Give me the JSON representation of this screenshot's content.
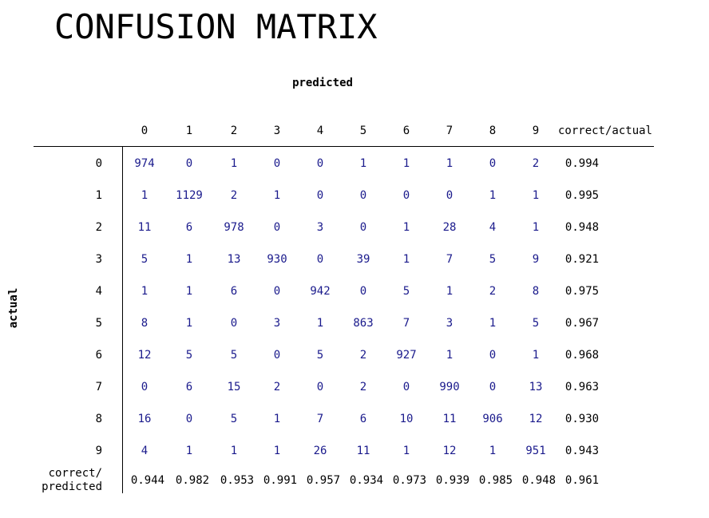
{
  "chart_data": {
    "type": "table",
    "title": "CONFUSION MATRIX",
    "xlabel": "predicted",
    "ylabel": "actual",
    "columns": [
      "0",
      "1",
      "2",
      "3",
      "4",
      "5",
      "6",
      "7",
      "8",
      "9"
    ],
    "rows": [
      "0",
      "1",
      "2",
      "3",
      "4",
      "5",
      "6",
      "7",
      "8",
      "9"
    ],
    "summary_column_label": "correct/actual",
    "summary_row_label": [
      "correct/",
      "predicted"
    ],
    "values": [
      [
        974,
        0,
        1,
        0,
        0,
        1,
        1,
        1,
        0,
        2
      ],
      [
        1,
        1129,
        2,
        1,
        0,
        0,
        0,
        0,
        1,
        1
      ],
      [
        11,
        6,
        978,
        0,
        3,
        0,
        1,
        28,
        4,
        1
      ],
      [
        5,
        1,
        13,
        930,
        0,
        39,
        1,
        7,
        5,
        9
      ],
      [
        1,
        1,
        6,
        0,
        942,
        0,
        5,
        1,
        2,
        8
      ],
      [
        8,
        1,
        0,
        3,
        1,
        863,
        7,
        3,
        1,
        5
      ],
      [
        12,
        5,
        5,
        0,
        5,
        2,
        927,
        1,
        0,
        1
      ],
      [
        0,
        6,
        15,
        2,
        0,
        2,
        0,
        990,
        0,
        13
      ],
      [
        16,
        0,
        5,
        1,
        7,
        6,
        10,
        11,
        906,
        12
      ],
      [
        4,
        1,
        1,
        1,
        26,
        11,
        1,
        12,
        1,
        951
      ]
    ],
    "correct_over_actual": [
      "0.994",
      "0.995",
      "0.948",
      "0.921",
      "0.975",
      "0.967",
      "0.968",
      "0.963",
      "0.930",
      "0.943"
    ],
    "correct_over_predicted": [
      "0.944",
      "0.982",
      "0.953",
      "0.991",
      "0.957",
      "0.934",
      "0.973",
      "0.939",
      "0.985",
      "0.948"
    ],
    "overall_accuracy": "0.961",
    "colors": {
      "cell_value": "#1a1a8c",
      "label": "#000000",
      "rule": "#000000"
    }
  }
}
